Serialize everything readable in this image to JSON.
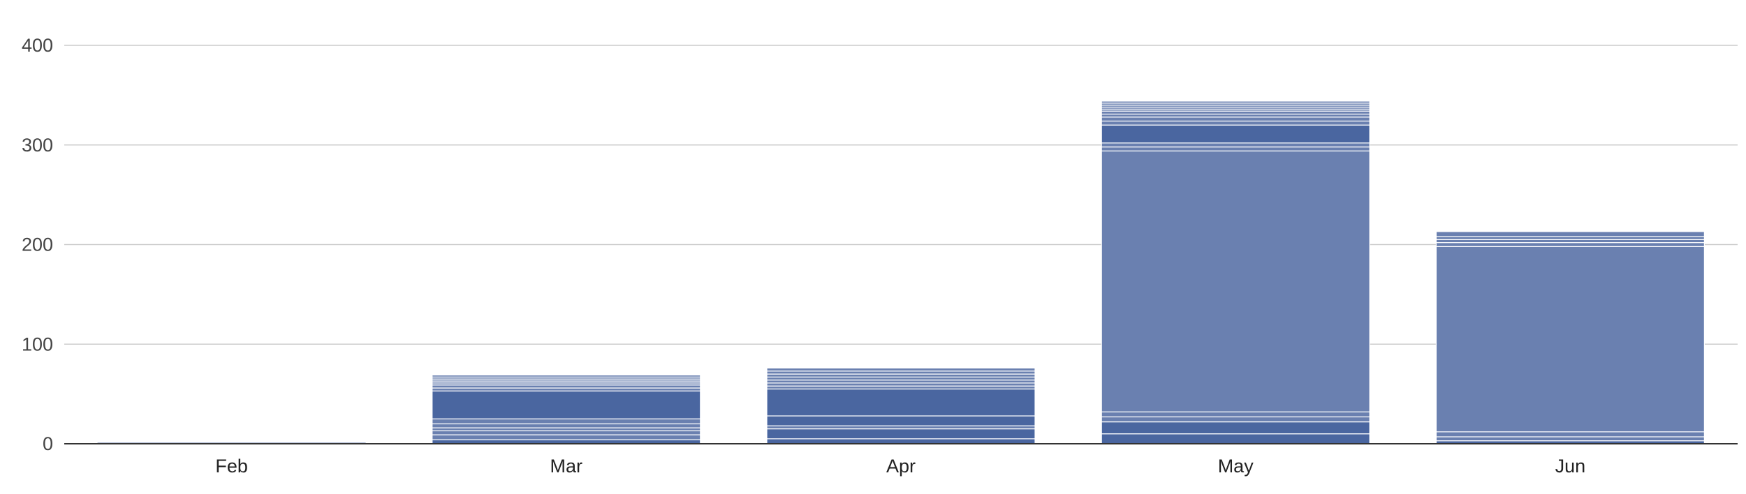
{
  "chart_data": {
    "type": "bar",
    "stacked": true,
    "categories": [
      "Feb",
      "Mar",
      "Apr",
      "May",
      "Jun"
    ],
    "ylim": [
      0,
      400
    ],
    "yticks": [
      0,
      100,
      200,
      300,
      400
    ],
    "ytick_labels": [
      "0",
      "100",
      "200",
      "300",
      "400"
    ],
    "grid": true,
    "legend": "none",
    "title": "",
    "xlabel": "",
    "ylabel": "",
    "totals": [
      1,
      69,
      76,
      344,
      213
    ],
    "stacks": [
      [
        {
          "value": 1,
          "color": "#4a66a0"
        }
      ],
      [
        {
          "value": 4,
          "color": "#4a66a0"
        },
        {
          "value": 5,
          "color": "#6a80b0"
        },
        {
          "value": 4,
          "color": "#6a80b0"
        },
        {
          "value": 3,
          "color": "#6a80b0"
        },
        {
          "value": 4,
          "color": "#6a80b0"
        },
        {
          "value": 5,
          "color": "#6a80b0"
        },
        {
          "value": 28,
          "color": "#4a66a0"
        },
        {
          "value": 3,
          "color": "#6a80b0"
        },
        {
          "value": 3,
          "color": "#6a80b0"
        },
        {
          "value": 2,
          "color": "#6a80b0"
        },
        {
          "value": 2,
          "color": "#6a80b0"
        },
        {
          "value": 2,
          "color": "#6a80b0"
        },
        {
          "value": 2,
          "color": "#6a80b0"
        },
        {
          "value": 2,
          "color": "#6a80b0"
        }
      ],
      [
        {
          "value": 5,
          "color": "#4a66a0"
        },
        {
          "value": 10,
          "color": "#4a66a0"
        },
        {
          "value": 3,
          "color": "#6a80b0"
        },
        {
          "value": 10,
          "color": "#4a66a0"
        },
        {
          "value": 27,
          "color": "#4a66a0"
        },
        {
          "value": 3,
          "color": "#6a80b0"
        },
        {
          "value": 3,
          "color": "#6a80b0"
        },
        {
          "value": 3,
          "color": "#6a80b0"
        },
        {
          "value": 3,
          "color": "#6a80b0"
        },
        {
          "value": 3,
          "color": "#6a80b0"
        },
        {
          "value": 3,
          "color": "#6a80b0"
        },
        {
          "value": 3,
          "color": "#6a80b0"
        }
      ],
      [
        {
          "value": 10,
          "color": "#4a66a0"
        },
        {
          "value": 12,
          "color": "#4a66a0"
        },
        {
          "value": 5,
          "color": "#6a80b0"
        },
        {
          "value": 5,
          "color": "#6a80b0"
        },
        {
          "value": 262,
          "color": "#6a80b0"
        },
        {
          "value": 4,
          "color": "#6a80b0"
        },
        {
          "value": 4,
          "color": "#6a80b0"
        },
        {
          "value": 18,
          "color": "#4a66a0"
        },
        {
          "value": 4,
          "color": "#6a80b0"
        },
        {
          "value": 4,
          "color": "#6a80b0"
        },
        {
          "value": 3,
          "color": "#6a80b0"
        },
        {
          "value": 3,
          "color": "#6a80b0"
        },
        {
          "value": 2,
          "color": "#6a80b0"
        },
        {
          "value": 2,
          "color": "#6a80b0"
        },
        {
          "value": 2,
          "color": "#6a80b0"
        },
        {
          "value": 2,
          "color": "#6a80b0"
        },
        {
          "value": 2,
          "color": "#6a80b0"
        }
      ],
      [
        {
          "value": 3,
          "color": "#4a66a0"
        },
        {
          "value": 4,
          "color": "#6a80b0"
        },
        {
          "value": 5,
          "color": "#6a80b0"
        },
        {
          "value": 186,
          "color": "#6a80b0"
        },
        {
          "value": 4,
          "color": "#6a80b0"
        },
        {
          "value": 3,
          "color": "#6a80b0"
        },
        {
          "value": 3,
          "color": "#6a80b0"
        },
        {
          "value": 5,
          "color": "#6a80b0"
        }
      ]
    ],
    "colors": {
      "segment_dark": "#4a66a0",
      "segment_light": "#6a80b0",
      "segment_separator": "#ffffff",
      "gridline": "#cccccc",
      "baseline": "#333333",
      "tick_text": "#444444",
      "category_text": "#222222"
    }
  }
}
